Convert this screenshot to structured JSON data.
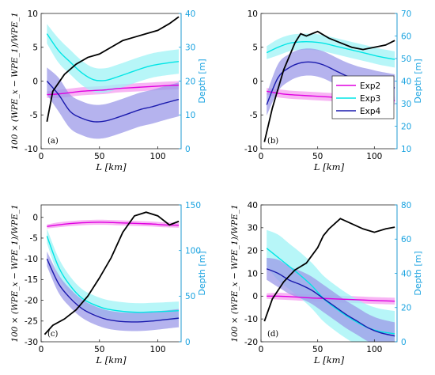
{
  "colors": {
    "exp2": "#e000e0",
    "exp3": "#00e5e5",
    "exp4": "#1a1aad",
    "depth": "#000000",
    "right_axis": "#1aa3e0",
    "exp2_band": "#f59cf0",
    "exp3_band": "#9ff3f5",
    "exp4_band": "#9c9ae8"
  },
  "chart_data": [
    {
      "type": "line",
      "panel": "(a)",
      "xlabel": "L [km]",
      "ylabel": "100 × (WPE_x − WPE_1)/WPE_1",
      "ylabel_right": "Depth [m]",
      "xlim": [
        0,
        120
      ],
      "ylim": [
        -10,
        10
      ],
      "ylim_right": [
        0,
        40
      ],
      "xticks": [
        0,
        50,
        100
      ],
      "yticks": [
        -10,
        -5,
        0,
        5,
        10
      ],
      "yticks_right": [
        0,
        10,
        20,
        30,
        40
      ],
      "x": [
        5,
        15,
        25,
        35,
        45,
        55,
        65,
        75,
        85,
        95,
        105,
        118
      ],
      "series": [
        {
          "name": "Exp2",
          "values": [
            -2.0,
            -1.9,
            -1.7,
            -1.5,
            -1.4,
            -1.3,
            -1.1,
            -1.0,
            -0.9,
            -0.8,
            -0.7,
            -0.6
          ],
          "band": 0.6
        },
        {
          "name": "Exp3",
          "values": [
            7.0,
            4.5,
            2.8,
            1.2,
            0.2,
            0.1,
            0.6,
            1.2,
            1.8,
            2.3,
            2.6,
            2.9
          ],
          "band": 1.8
        },
        {
          "name": "Exp4",
          "values": [
            0.0,
            -2.0,
            -4.5,
            -5.5,
            -6.0,
            -5.9,
            -5.4,
            -4.8,
            -4.2,
            -3.8,
            -3.3,
            -2.7
          ],
          "band": 2.5
        },
        {
          "name": "Depth",
          "axis": "right",
          "x": [
            5,
            10,
            20,
            30,
            40,
            50,
            60,
            70,
            80,
            90,
            100,
            110,
            118
          ],
          "values": [
            8,
            17,
            22,
            25,
            27,
            28,
            30,
            32,
            33,
            34,
            35,
            37,
            39
          ]
        }
      ]
    },
    {
      "type": "line",
      "panel": "(b)",
      "xlabel": "L [km]",
      "ylabel": "",
      "ylabel_right": "Depth [m]",
      "xlim": [
        0,
        120
      ],
      "ylim": [
        -10,
        10
      ],
      "ylim_right": [
        10,
        70
      ],
      "xticks": [
        0,
        50,
        100
      ],
      "yticks": [
        -10,
        -5,
        0,
        5,
        10
      ],
      "yticks_right": [
        10,
        20,
        30,
        40,
        50,
        60,
        70
      ],
      "x": [
        5,
        15,
        25,
        35,
        45,
        55,
        65,
        75,
        85,
        95,
        105,
        118
      ],
      "series": [
        {
          "name": "Exp2",
          "values": [
            -1.5,
            -1.8,
            -2.0,
            -2.1,
            -2.2,
            -2.3,
            -2.4,
            -2.5,
            -2.6,
            -2.7,
            -2.8,
            -2.9
          ],
          "band": 0.6
        },
        {
          "name": "Exp3",
          "values": [
            4.2,
            5.0,
            5.6,
            5.8,
            5.8,
            5.6,
            5.2,
            4.8,
            4.4,
            4.0,
            3.6,
            3.2
          ],
          "band": 1.2
        },
        {
          "name": "Exp4",
          "values": [
            -3.5,
            0.5,
            2.0,
            2.7,
            2.8,
            2.4,
            1.6,
            0.8,
            0.2,
            -0.2,
            -0.6,
            -1.0
          ],
          "band": 2.0
        },
        {
          "name": "Depth",
          "axis": "right",
          "x": [
            3,
            10,
            20,
            30,
            35,
            40,
            50,
            60,
            70,
            80,
            90,
            100,
            110,
            118
          ],
          "values": [
            13,
            28,
            45,
            57,
            61,
            60,
            62,
            59,
            57,
            55,
            54,
            55,
            56,
            58
          ]
        }
      ],
      "legend": {
        "placement": "bottom-right",
        "entries": [
          "Exp2",
          "Exp3",
          "Exp4"
        ]
      }
    },
    {
      "type": "line",
      "panel": "(c)",
      "xlabel": "L [km]",
      "ylabel": "100 × (WPE_x − WPE_1)/WPE_1",
      "ylabel_right": "Depth [m]",
      "xlim": [
        0,
        120
      ],
      "ylim": [
        -30,
        3
      ],
      "ylim_right": [
        0,
        150
      ],
      "xticks": [
        0,
        50,
        100
      ],
      "yticks": [
        -30,
        -25,
        -20,
        -15,
        -10,
        -5,
        0
      ],
      "yticks_right": [
        0,
        50,
        100,
        150
      ],
      "x": [
        5,
        15,
        25,
        35,
        45,
        55,
        65,
        75,
        85,
        95,
        105,
        118
      ],
      "series": [
        {
          "name": "Exp2",
          "values": [
            -2.2,
            -1.8,
            -1.5,
            -1.3,
            -1.2,
            -1.2,
            -1.3,
            -1.4,
            -1.5,
            -1.6,
            -1.8,
            -1.9
          ],
          "band": 0.6
        },
        {
          "name": "Exp3",
          "values": [
            -4.5,
            -12.0,
            -16.5,
            -19.5,
            -21.0,
            -22.0,
            -22.5,
            -22.8,
            -22.9,
            -22.8,
            -22.7,
            -22.5
          ],
          "band": 2.2
        },
        {
          "name": "Exp4",
          "values": [
            -10.0,
            -16.0,
            -19.5,
            -22.0,
            -23.5,
            -24.5,
            -25.0,
            -25.2,
            -25.2,
            -25.0,
            -24.7,
            -24.3
          ],
          "band": 2.2
        },
        {
          "name": "Depth",
          "axis": "right",
          "x": [
            3,
            10,
            20,
            30,
            40,
            50,
            60,
            70,
            80,
            90,
            100,
            110,
            118
          ],
          "values": [
            8,
            18,
            25,
            35,
            50,
            70,
            92,
            120,
            138,
            142,
            138,
            128,
            132
          ]
        }
      ]
    },
    {
      "type": "line",
      "panel": "(d)",
      "xlabel": "L [km]",
      "ylabel": "100 × (WPE_x − WPE_1)/WPE_1",
      "ylabel_right": "Depth [m]",
      "xlim": [
        0,
        120
      ],
      "ylim": [
        -20,
        40
      ],
      "ylim_right": [
        0,
        80
      ],
      "xticks": [
        0,
        50,
        100
      ],
      "yticks": [
        -20,
        -10,
        0,
        10,
        20,
        30,
        40
      ],
      "yticks_right": [
        0,
        20,
        40,
        60,
        80
      ],
      "x": [
        5,
        15,
        25,
        35,
        45,
        55,
        65,
        75,
        85,
        95,
        105,
        118
      ],
      "series": [
        {
          "name": "Exp2",
          "values": [
            0.0,
            0.0,
            -0.2,
            -0.5,
            -0.8,
            -1.0,
            -1.2,
            -1.4,
            -1.6,
            -1.8,
            -2.0,
            -2.2
          ],
          "band": 1.5
        },
        {
          "name": "Exp3",
          "values": [
            21,
            17,
            13,
            9,
            4.5,
            -1,
            -5,
            -8.5,
            -11.5,
            -14,
            -15.5,
            -16.5
          ],
          "band": 10
        },
        {
          "name": "Exp4",
          "values": [
            12,
            10,
            7,
            5,
            2.5,
            -1,
            -4.5,
            -8,
            -11,
            -14,
            -16,
            -17.5
          ],
          "band": 6
        },
        {
          "name": "Depth",
          "axis": "right",
          "x": [
            3,
            10,
            20,
            30,
            40,
            50,
            55,
            60,
            70,
            80,
            90,
            100,
            110,
            118
          ],
          "values": [
            12,
            25,
            35,
            42,
            46,
            55,
            62,
            66,
            72,
            69,
            66,
            64,
            66,
            67
          ]
        }
      ]
    }
  ]
}
